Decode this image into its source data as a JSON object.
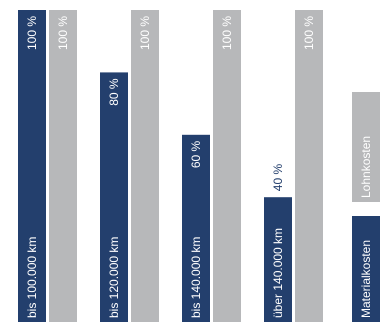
{
  "chart_data": {
    "type": "bar",
    "orientation": "vertical",
    "categories": [
      "bis 100.000 km",
      "bis 120.000 km",
      "bis 140.000 km",
      "über 140.000 km"
    ],
    "series": [
      {
        "name": "Materialkosten",
        "values": [
          100,
          80,
          60,
          40
        ],
        "labels": [
          "100 %",
          "80 %",
          "60 %",
          "40 %"
        ],
        "color": "#233f6d"
      },
      {
        "name": "Lohnkosten",
        "values": [
          100,
          100,
          100,
          100
        ],
        "labels": [
          "100 %",
          "100 %",
          "100 %",
          "100 %"
        ],
        "color": "#b7b8ba"
      }
    ],
    "ylim": [
      0,
      100
    ],
    "grid": false,
    "legend_position": "right"
  }
}
